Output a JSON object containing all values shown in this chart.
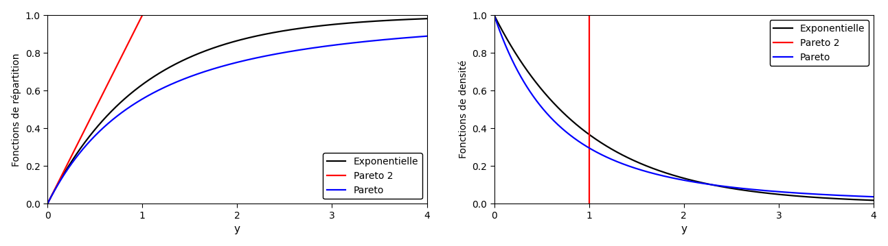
{
  "ylabel_left": "Fonctions de répartition",
  "ylabel_right": "Fonctions de densité",
  "xlabel": "y",
  "xlim": [
    0,
    4
  ],
  "ylim_cdf": [
    0.0,
    1.0
  ],
  "ylim_pdf": [
    0.0,
    1.0
  ],
  "xticks": [
    0,
    1,
    2,
    3,
    4
  ],
  "yticks": [
    0.0,
    0.2,
    0.4,
    0.6,
    0.8,
    1.0
  ],
  "legend_labels": [
    "Exponentielle",
    "Pareto 2",
    "Pareto"
  ],
  "colors": [
    "black",
    "red",
    "blue"
  ],
  "line_width": 1.6,
  "background_color": "#ffffff",
  "panel_bg": "#ffffff",
  "sigma": 1.0,
  "xi_exp": 0.0,
  "xi_pareto2": -1.0,
  "xi_pareto": 0.5,
  "red_vline_x": 1.0,
  "n_points": 1000,
  "font_size": 10,
  "tick_label_size": 10
}
